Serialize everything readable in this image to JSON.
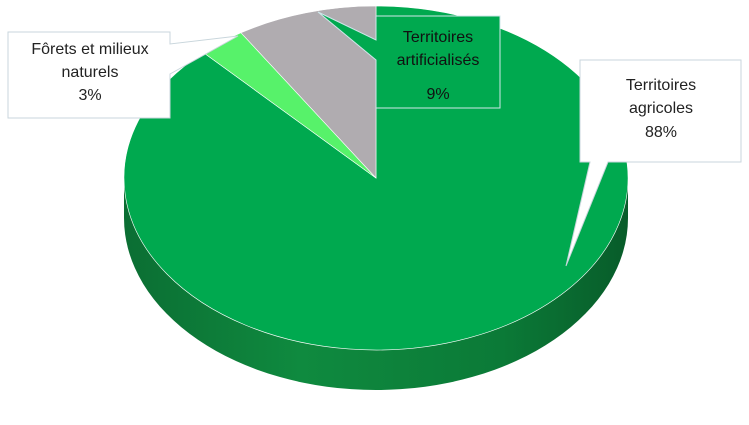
{
  "chart_data": {
    "type": "pie",
    "slices": [
      {
        "label": "Territoires agricoles",
        "value": 88,
        "value_text": "88%",
        "color": "#00a94f",
        "side_color": "#0a7a37"
      },
      {
        "label": "Fôrets et milieux naturels",
        "value": 3,
        "value_text": "3%",
        "color": "#57f26a",
        "side_color": "#2fb842"
      },
      {
        "label": "Territoires artificialisés",
        "value": 9,
        "value_text": "9%",
        "color": "#b0acb0",
        "side_color": "#7f7c80"
      }
    ],
    "labels": {
      "agricoles": {
        "line1": "Territoires",
        "line2": "agricoles",
        "pct": "88%"
      },
      "forets": {
        "line1": "Fôrets et milieux",
        "line2": "naturels",
        "pct": "3%"
      },
      "artificialises": {
        "line1": "Territoires",
        "line2": "artificialisés",
        "pct": "9%"
      }
    },
    "style": "3d"
  }
}
